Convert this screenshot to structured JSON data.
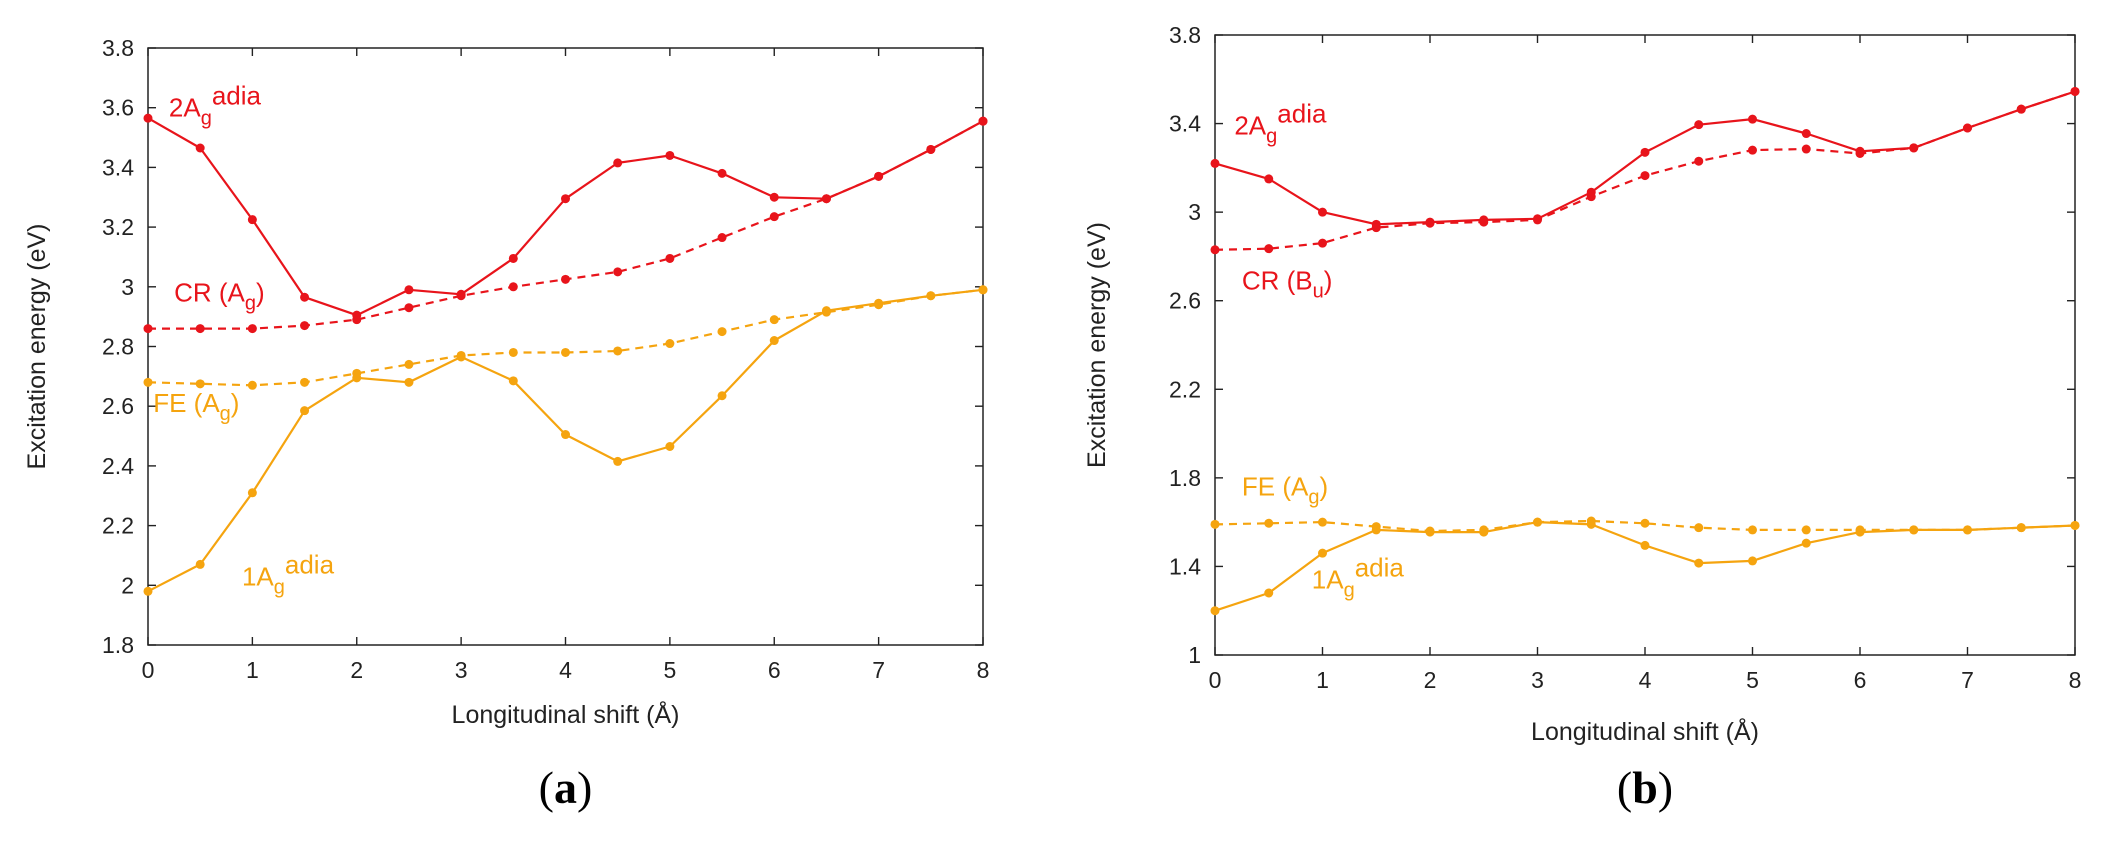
{
  "colors": {
    "red": "#e8141b",
    "orange": "#f5a40f"
  },
  "chart_data": [
    {
      "type": "line",
      "panel_label": "a",
      "xlabel": "Longitudinal shift (Å)",
      "ylabel": "Excitation energy (eV)",
      "xlim": [
        0,
        8
      ],
      "ylim": [
        1.8,
        3.8
      ],
      "xticks": [
        0,
        1,
        2,
        3,
        4,
        5,
        6,
        7,
        8
      ],
      "yticks": [
        "1.8",
        "2",
        "2.2",
        "2.4",
        "2.6",
        "2.8",
        "3",
        "3.2",
        "3.4",
        "3.6",
        "3.8"
      ],
      "x": [
        0,
        0.5,
        1,
        1.5,
        2,
        2.5,
        3,
        3.5,
        4,
        4.5,
        5,
        5.5,
        6,
        6.5,
        7,
        7.5,
        8
      ],
      "series": [
        {
          "name": "2A_g^adia",
          "label_main": "2A",
          "label_sub": "g",
          "label_sup": "adia",
          "label_sep": "",
          "label_close": "",
          "color": "red",
          "style": "solid",
          "label_x": 0.2,
          "label_y": 3.57,
          "values": [
            3.565,
            3.465,
            3.225,
            2.965,
            2.905,
            2.99,
            2.975,
            3.095,
            3.295,
            3.415,
            3.44,
            3.38,
            3.3,
            3.295,
            3.37,
            3.46,
            3.555
          ]
        },
        {
          "name": "CR (A_g)",
          "label_main": "CR (A",
          "label_sub": "g",
          "label_sup": "",
          "label_close": ")",
          "color": "red",
          "style": "dashed",
          "label_x": 0.25,
          "label_y": 2.95,
          "values": [
            2.86,
            2.86,
            2.86,
            2.87,
            2.89,
            2.93,
            2.97,
            3.0,
            3.025,
            3.05,
            3.095,
            3.165,
            3.235,
            3.295,
            3.37,
            3.46,
            3.555
          ]
        },
        {
          "name": "FE (A_g)",
          "label_main": "FE (A",
          "label_sub": "g",
          "label_sup": "",
          "label_close": ")",
          "color": "orange",
          "style": "dashed",
          "label_x": 0.05,
          "label_y": 2.58,
          "values": [
            2.68,
            2.675,
            2.67,
            2.68,
            2.71,
            2.74,
            2.77,
            2.78,
            2.78,
            2.785,
            2.81,
            2.85,
            2.89,
            2.915,
            2.94,
            2.97,
            2.99
          ]
        },
        {
          "name": "1A_g^adia",
          "label_main": "1A",
          "label_sub": "g",
          "label_sup": "adia",
          "label_close": "",
          "color": "orange",
          "style": "solid",
          "label_x": 0.9,
          "label_y": 2.0,
          "values": [
            1.98,
            2.07,
            2.31,
            2.585,
            2.695,
            2.68,
            2.765,
            2.685,
            2.505,
            2.415,
            2.465,
            2.635,
            2.82,
            2.92,
            2.945,
            2.97,
            2.99
          ]
        }
      ]
    },
    {
      "type": "line",
      "panel_label": "b",
      "xlabel": "Longitudinal shift (Å)",
      "ylabel": "Excitation energy (eV)",
      "xlim": [
        0,
        8
      ],
      "ylim": [
        1.0,
        3.8
      ],
      "xticks": [
        0,
        1,
        2,
        3,
        4,
        5,
        6,
        7,
        8
      ],
      "yticks": [
        "1",
        "1.4",
        "1.8",
        "2.2",
        "2.6",
        "3",
        "3.4",
        "3.8"
      ],
      "x": [
        0,
        0.5,
        1,
        1.5,
        2,
        2.5,
        3,
        3.5,
        4,
        4.5,
        5,
        5.5,
        6,
        6.5,
        7,
        7.5,
        8
      ],
      "series": [
        {
          "name": "2A_g^adia",
          "label_main": "2A",
          "label_sub": "g",
          "label_sup": "adia",
          "label_close": "",
          "color": "red",
          "style": "solid",
          "label_x": 0.18,
          "label_y": 3.35,
          "values": [
            3.22,
            3.15,
            3.0,
            2.945,
            2.955,
            2.965,
            2.97,
            3.09,
            3.27,
            3.395,
            3.42,
            3.355,
            3.275,
            3.29,
            3.38,
            3.465,
            3.545
          ]
        },
        {
          "name": "CR (B_u)",
          "label_main": "CR (B",
          "label_sub": "u",
          "label_sup": "",
          "label_close": ")",
          "color": "red",
          "style": "dashed",
          "label_x": 0.25,
          "label_y": 2.65,
          "values": [
            2.83,
            2.835,
            2.86,
            2.93,
            2.95,
            2.955,
            2.965,
            3.07,
            3.165,
            3.23,
            3.28,
            3.285,
            3.265,
            3.29,
            3.38,
            3.465,
            3.545
          ]
        },
        {
          "name": "FE (A_g)",
          "label_main": "FE (A",
          "label_sub": "g",
          "label_sup": "",
          "label_close": ")",
          "color": "orange",
          "style": "dashed",
          "label_x": 0.25,
          "label_y": 1.72,
          "values": [
            1.59,
            1.595,
            1.6,
            1.58,
            1.56,
            1.565,
            1.6,
            1.605,
            1.595,
            1.575,
            1.565,
            1.565,
            1.565,
            1.565,
            1.565,
            1.575,
            1.585
          ]
        },
        {
          "name": "1A_g^adia",
          "label_main": "1A",
          "label_sub": "g",
          "label_sup": "adia",
          "label_close": "",
          "color": "orange",
          "style": "solid",
          "label_x": 0.9,
          "label_y": 1.3,
          "values": [
            1.2,
            1.28,
            1.46,
            1.565,
            1.555,
            1.555,
            1.6,
            1.59,
            1.495,
            1.415,
            1.425,
            1.505,
            1.555,
            1.565,
            1.565,
            1.575,
            1.585
          ]
        }
      ]
    }
  ]
}
